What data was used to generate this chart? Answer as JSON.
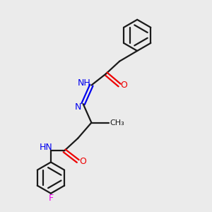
{
  "bg_color": "#ebebeb",
  "bond_color": "#1a1a1a",
  "N_color": "#0000ee",
  "O_color": "#ee0000",
  "F_color": "#ee00ee",
  "line_width": 1.6,
  "fig_w": 3.0,
  "fig_h": 3.0,
  "dpi": 100,
  "xlim": [
    0,
    10
  ],
  "ylim": [
    0,
    10
  ]
}
